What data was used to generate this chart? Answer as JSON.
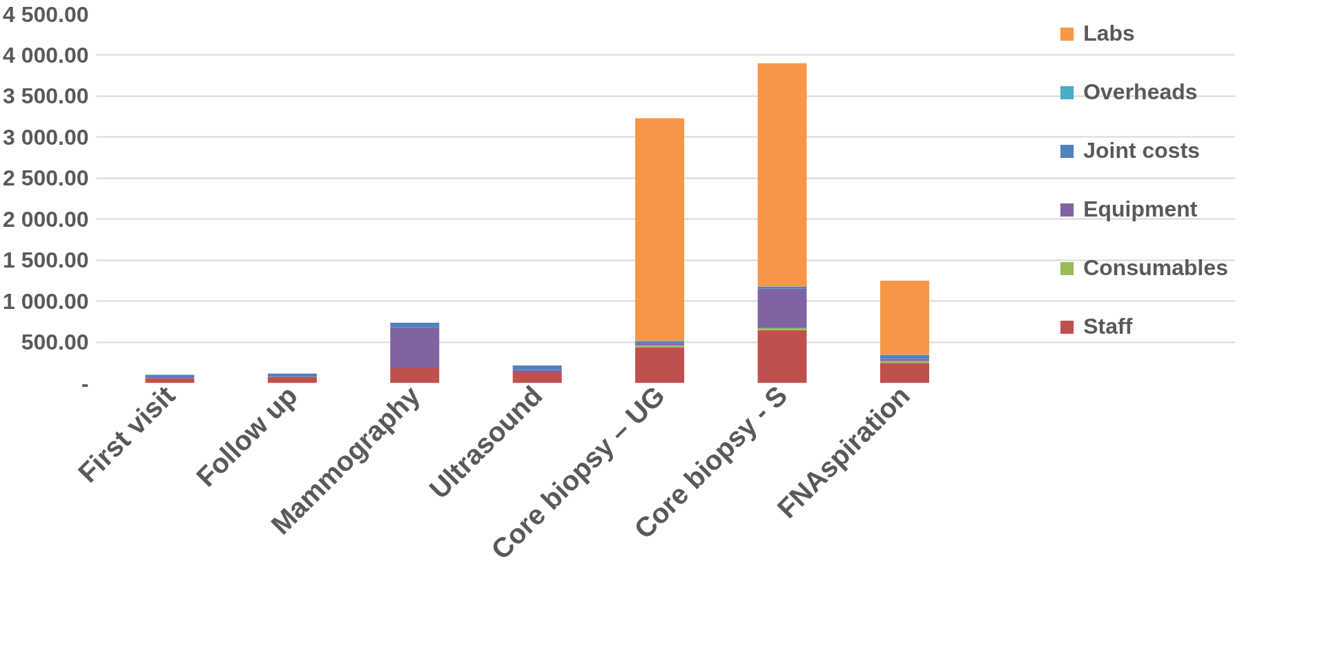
{
  "chart_data": {
    "type": "bar",
    "stacked": true,
    "categories": [
      "First visit",
      "Follow up",
      "Mammography",
      "Ultrasound",
      "Core biopsy – UG",
      "Core biopsy - S",
      "FNAspiration"
    ],
    "series": [
      {
        "name": "Staff",
        "color": "#c0504d",
        "values": [
          60,
          75,
          190,
          130,
          435,
          645,
          245
        ]
      },
      {
        "name": "Consumables",
        "color": "#9bbb59",
        "values": [
          0,
          0,
          0,
          0,
          25,
          25,
          25
        ]
      },
      {
        "name": "Equipment",
        "color": "#8064a2",
        "values": [
          0,
          0,
          490,
          30,
          25,
          480,
          25
        ]
      },
      {
        "name": "Joint costs",
        "color": "#4f81bd",
        "values": [
          40,
          40,
          55,
          55,
          25,
          25,
          45
        ]
      },
      {
        "name": "Overheads",
        "color": "#4bacc6",
        "values": [
          0,
          0,
          0,
          0,
          5,
          5,
          5
        ]
      },
      {
        "name": "Labs",
        "color": "#f79646",
        "values": [
          0,
          0,
          0,
          0,
          2715,
          2720,
          905
        ]
      }
    ],
    "ylim": [
      0,
      4500
    ],
    "yticks": [
      {
        "value": 0,
        "label": "-"
      },
      {
        "value": 500,
        "label": "500.00"
      },
      {
        "value": 1000,
        "label": "1 000.00"
      },
      {
        "value": 1500,
        "label": "1 500.00"
      },
      {
        "value": 2000,
        "label": "2 000.00"
      },
      {
        "value": 2500,
        "label": "2 500.00"
      },
      {
        "value": 3000,
        "label": "3 000.00"
      },
      {
        "value": 3500,
        "label": "3 500.00"
      },
      {
        "value": 4000,
        "label": "4 000.00"
      },
      {
        "value": 4500,
        "label": "4 500.00"
      }
    ],
    "grid": "y",
    "legend": "right"
  }
}
